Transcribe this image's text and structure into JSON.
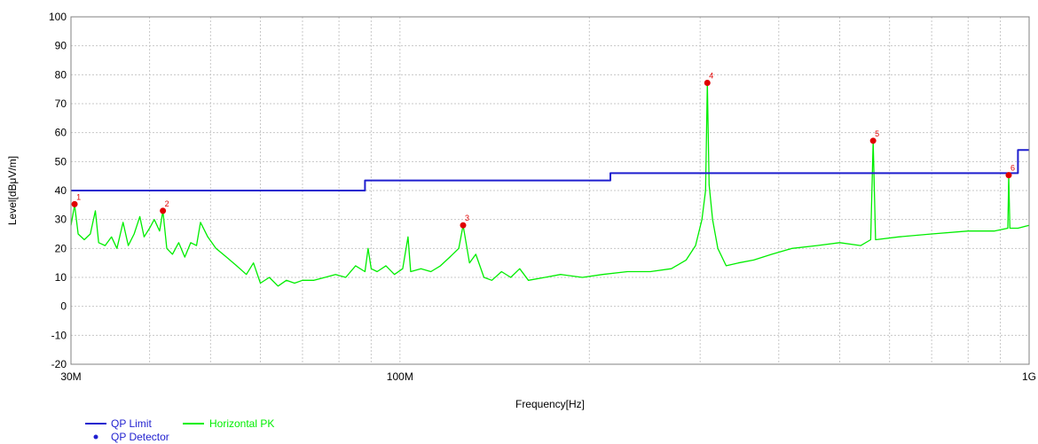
{
  "chart_data": {
    "type": "line",
    "xlabel": "Frequency[Hz]",
    "ylabel": "Level[dBμV/m]",
    "x_scale": "log",
    "xlim": [
      30000000,
      1000000000
    ],
    "ylim": [
      -20,
      100
    ],
    "yticks": [
      -20,
      -10,
      0,
      10,
      20,
      30,
      40,
      50,
      60,
      70,
      80,
      90,
      100
    ],
    "xticks_labeled": [
      {
        "value": 30000000,
        "label": "30M"
      },
      {
        "value": 100000000,
        "label": "100M"
      },
      {
        "value": 1000000000,
        "label": "1G"
      }
    ],
    "grid": true,
    "legend_position": "bottom-left",
    "series": [
      {
        "name": "QP Limit",
        "color": "#1f1fcf",
        "style": "step",
        "points": [
          [
            30000000,
            40
          ],
          [
            88000000,
            40
          ],
          [
            88000000,
            43.5
          ],
          [
            216000000,
            43.5
          ],
          [
            216000000,
            46
          ],
          [
            960000000,
            46
          ],
          [
            960000000,
            54
          ],
          [
            1000000000,
            54
          ]
        ]
      },
      {
        "name": "Horizontal PK",
        "color": "#00ee00",
        "points": [
          [
            30000000,
            28
          ],
          [
            30400000,
            35
          ],
          [
            30800000,
            25
          ],
          [
            31500000,
            23
          ],
          [
            32200000,
            25
          ],
          [
            32800000,
            33
          ],
          [
            33200000,
            22
          ],
          [
            34000000,
            21
          ],
          [
            34800000,
            24
          ],
          [
            35500000,
            20
          ],
          [
            36300000,
            29
          ],
          [
            37000000,
            21
          ],
          [
            37800000,
            25
          ],
          [
            38600000,
            31
          ],
          [
            39200000,
            24
          ],
          [
            40000000,
            27
          ],
          [
            40700000,
            30
          ],
          [
            41500000,
            26
          ],
          [
            42000000,
            33
          ],
          [
            42600000,
            20
          ],
          [
            43500000,
            18
          ],
          [
            44500000,
            22
          ],
          [
            45500000,
            17
          ],
          [
            46500000,
            22
          ],
          [
            47500000,
            21
          ],
          [
            48200000,
            29
          ],
          [
            49500000,
            24
          ],
          [
            51000000,
            20
          ],
          [
            53000000,
            17
          ],
          [
            55000000,
            14
          ],
          [
            57000000,
            11
          ],
          [
            58500000,
            15
          ],
          [
            60000000,
            8
          ],
          [
            62000000,
            10
          ],
          [
            64000000,
            7
          ],
          [
            66000000,
            9
          ],
          [
            68000000,
            8
          ],
          [
            70000000,
            9
          ],
          [
            73000000,
            9
          ],
          [
            76000000,
            10
          ],
          [
            79000000,
            11
          ],
          [
            82000000,
            10
          ],
          [
            85000000,
            14
          ],
          [
            88000000,
            12
          ],
          [
            89000000,
            20
          ],
          [
            90000000,
            13
          ],
          [
            92000000,
            12
          ],
          [
            95000000,
            14
          ],
          [
            98000000,
            11
          ],
          [
            101000000,
            13
          ],
          [
            103000000,
            24
          ],
          [
            104000000,
            12
          ],
          [
            108000000,
            13
          ],
          [
            112000000,
            12
          ],
          [
            116000000,
            14
          ],
          [
            120000000,
            17
          ],
          [
            124000000,
            20
          ],
          [
            126000000,
            28
          ],
          [
            129000000,
            15
          ],
          [
            132000000,
            18
          ],
          [
            136000000,
            10
          ],
          [
            140000000,
            9
          ],
          [
            145000000,
            12
          ],
          [
            150000000,
            10
          ],
          [
            155000000,
            13
          ],
          [
            160000000,
            9
          ],
          [
            170000000,
            10
          ],
          [
            180000000,
            11
          ],
          [
            195000000,
            10
          ],
          [
            210000000,
            11
          ],
          [
            230000000,
            12
          ],
          [
            250000000,
            12
          ],
          [
            270000000,
            13
          ],
          [
            285000000,
            16
          ],
          [
            295000000,
            21
          ],
          [
            302000000,
            30
          ],
          [
            306000000,
            40
          ],
          [
            308000000,
            77
          ],
          [
            310000000,
            42
          ],
          [
            314000000,
            30
          ],
          [
            320000000,
            20
          ],
          [
            330000000,
            14
          ],
          [
            345000000,
            15
          ],
          [
            365000000,
            16
          ],
          [
            390000000,
            18
          ],
          [
            420000000,
            20
          ],
          [
            460000000,
            21
          ],
          [
            500000000,
            22
          ],
          [
            540000000,
            21
          ],
          [
            560000000,
            23
          ],
          [
            565000000,
            57
          ],
          [
            570000000,
            23
          ],
          [
            620000000,
            24
          ],
          [
            700000000,
            25
          ],
          [
            800000000,
            26
          ],
          [
            880000000,
            26
          ],
          [
            925000000,
            27
          ],
          [
            928000000,
            45
          ],
          [
            932000000,
            27
          ],
          [
            960000000,
            27
          ],
          [
            1000000000,
            28
          ]
        ]
      },
      {
        "name": "QP Detector",
        "color": "#1f1fcf",
        "points": []
      }
    ],
    "markers": [
      {
        "label": "1",
        "x": 30400000,
        "y": 35.3
      },
      {
        "label": "2",
        "x": 42000000,
        "y": 33
      },
      {
        "label": "3",
        "x": 126000000,
        "y": 28
      },
      {
        "label": "4",
        "x": 308000000,
        "y": 77.2
      },
      {
        "label": "5",
        "x": 565000000,
        "y": 57.2
      },
      {
        "label": "6",
        "x": 928000000,
        "y": 45.3
      }
    ],
    "marker_color": "#e00000"
  }
}
